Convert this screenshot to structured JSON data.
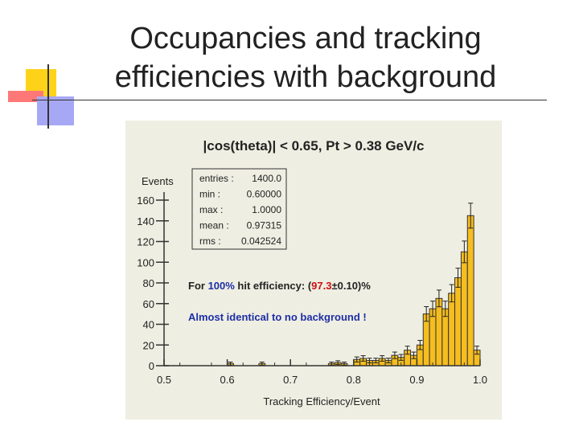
{
  "slide": {
    "title_line1": "Occupancies and tracking",
    "title_line2": "efficiencies with background"
  },
  "chart_data": {
    "type": "bar",
    "title": "|cos(theta)| < 0.65, Pt > 0.38 GeV/c",
    "xlabel": "Tracking Efficiency/Event",
    "ylabel": "Events",
    "xlim": [
      0.5,
      1.0
    ],
    "ylim": [
      0,
      160
    ],
    "xticks": [
      "0.5",
      "0.6",
      "0.7",
      "0.8",
      "0.9",
      "1.0"
    ],
    "yticks": [
      "0",
      "20",
      "40",
      "60",
      "80",
      "100",
      "120",
      "140",
      "160"
    ],
    "bar_color": "#f5bd1f",
    "stats": [
      {
        "label": "entries :",
        "value": "1400.0"
      },
      {
        "label": "min :",
        "value": "0.60000"
      },
      {
        "label": "max :",
        "value": "1.0000"
      },
      {
        "label": "mean :",
        "value": "0.97315"
      },
      {
        "label": "rms :",
        "value": "0.042524"
      }
    ],
    "annotation1": {
      "prefix": "For ",
      "highlight1": "100%",
      "middle": " hit efficiency: (",
      "highlight2": "97.3",
      "suffix": "±0.10)%"
    },
    "annotation2": "Almost identical to no background !",
    "bins": {
      "x": [
        0.6,
        0.65,
        0.76,
        0.77,
        0.78,
        0.8,
        0.81,
        0.82,
        0.83,
        0.84,
        0.85,
        0.86,
        0.87,
        0.88,
        0.89,
        0.9,
        0.91,
        0.92,
        0.93,
        0.94,
        0.95,
        0.96,
        0.97,
        0.98,
        0.99
      ],
      "y": [
        2,
        2,
        2,
        3,
        2,
        6,
        7,
        5,
        5,
        7,
        5,
        10,
        8,
        15,
        10,
        20,
        50,
        55,
        65,
        55,
        70,
        85,
        110,
        145,
        15
      ]
    }
  }
}
